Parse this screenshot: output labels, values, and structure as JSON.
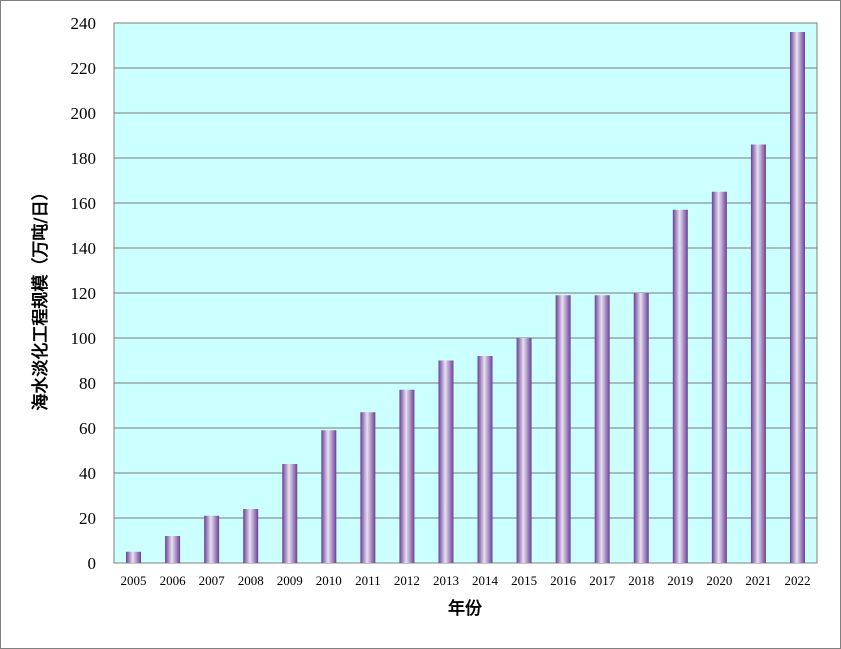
{
  "chart_data": {
    "type": "bar",
    "title": "",
    "xlabel": "年份",
    "ylabel": "海水淡化工程规模（万吨/日）",
    "categories": [
      "2005",
      "2006",
      "2007",
      "2008",
      "2009",
      "2010",
      "2011",
      "2012",
      "2013",
      "2014",
      "2015",
      "2016",
      "2017",
      "2018",
      "2019",
      "2020",
      "2021",
      "2022"
    ],
    "values": [
      5,
      12,
      21,
      24,
      44,
      59,
      67,
      77,
      90,
      92,
      100,
      119,
      119,
      120,
      157,
      165,
      186,
      236
    ],
    "ylim": [
      0,
      240
    ],
    "yticks": [
      "0",
      "20",
      "40",
      "60",
      "80",
      "100",
      "120",
      "140",
      "160",
      "180",
      "200",
      "220",
      "240"
    ],
    "grid": true,
    "legend": "none",
    "colors": {
      "plot_background": "#ccffff",
      "bar_light": "#e8e0f0",
      "bar_dark": "#6a3f98",
      "grid": "#7a7a7a",
      "frame": "#808080"
    }
  }
}
